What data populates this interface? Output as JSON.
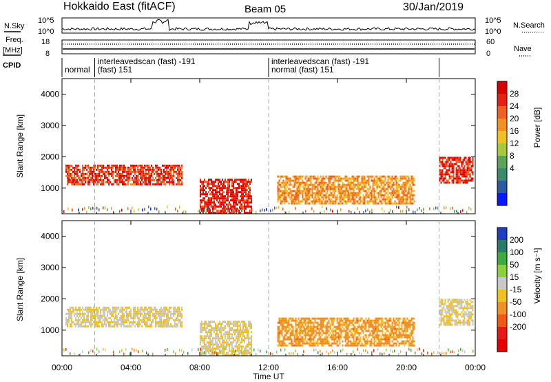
{
  "header": {
    "station": "Hokkaido East (fitACF)",
    "beam": "Beam 05",
    "date": "30/Jan/2019"
  },
  "left_labels": {
    "nsky": "N.Sky",
    "freq": "Freq.",
    "freq_unit": "[MHz]",
    "cpid": "CPID"
  },
  "right_labels": {
    "nsearch": "N.Search",
    "nave": "Nave"
  },
  "noise_axis": {
    "top": "10^5",
    "bottom": "10^0"
  },
  "freq_axis": {
    "top": "18",
    "bottom": "8"
  },
  "nave_axis": {
    "top": "60",
    "bottom": "0"
  },
  "cpid_segments": [
    {
      "start_h": 0.0,
      "end_h": 1.9,
      "line1": "",
      "line2": "normal"
    },
    {
      "start_h": 1.9,
      "end_h": 12.0,
      "line1": "interleavedscan (fast) -191",
      "line2": "(fast) 151"
    },
    {
      "start_h": 12.0,
      "end_h": 21.9,
      "line1": "interleavedscan (fast) -191",
      "line2": "normal (fast) 151"
    },
    {
      "start_h": 21.9,
      "end_h": 24.0,
      "line1": "",
      "line2": ""
    }
  ],
  "power_scale": {
    "label": "Power [dB]",
    "ticks": [
      "4",
      "8",
      "12",
      "16",
      "20",
      "24",
      "28"
    ],
    "colors": [
      "#0a1aff",
      "#2a5aa0",
      "#3c8a6c",
      "#5aa35a",
      "#a8c83a",
      "#f0c020",
      "#f59020",
      "#f06020",
      "#e82010",
      "#dd0000"
    ]
  },
  "velocity_scale": {
    "label": "Velocity [m s⁻¹]",
    "ticks": [
      "200",
      "100",
      "50",
      "15",
      "-15",
      "-50",
      "-100",
      "-200"
    ],
    "colors": [
      "#1f3fbf",
      "#2a7a6a",
      "#3caa3c",
      "#8ad23a",
      "#c8c8c8",
      "#f0c020",
      "#f09020",
      "#f05a10",
      "#e81818",
      "#e80000"
    ]
  },
  "chart_data": {
    "type": "heatmap",
    "xlabel": "Time UT",
    "ylabel": "Slant Range [km]",
    "x_ticks": [
      "00:00",
      "04:00",
      "08:00",
      "12:00",
      "16:00",
      "20:00",
      "00:00"
    ],
    "y_ticks": [
      "1000",
      "2000",
      "3000",
      "4000"
    ],
    "xlim_hours": [
      0,
      24
    ],
    "ylim_km": [
      180,
      4500
    ],
    "power_regions": [
      {
        "t0": 0.2,
        "t1": 7.0,
        "r0": 1150,
        "r1": 1750,
        "value_db": 26
      },
      {
        "t0": 8.0,
        "t1": 11.0,
        "r0": 200,
        "r1": 1300,
        "value_db": 28
      },
      {
        "t0": 12.5,
        "t1": 20.5,
        "r0": 500,
        "r1": 1400,
        "value_db": 20
      },
      {
        "t0": 21.9,
        "t1": 23.9,
        "r0": 1200,
        "r1": 2000,
        "value_db": 27
      }
    ],
    "velocity_regions": [
      {
        "t0": 0.2,
        "t1": 7.0,
        "r0": 1150,
        "r1": 1750,
        "value_ms": 0
      },
      {
        "t0": 8.0,
        "t1": 11.0,
        "r0": 200,
        "r1": 1300,
        "value_ms": 0
      },
      {
        "t0": 12.5,
        "t1": 20.5,
        "r0": 500,
        "r1": 1400,
        "value_ms": -60
      },
      {
        "t0": 21.9,
        "t1": 23.9,
        "r0": 1200,
        "r1": 2000,
        "value_ms": 0
      }
    ]
  }
}
